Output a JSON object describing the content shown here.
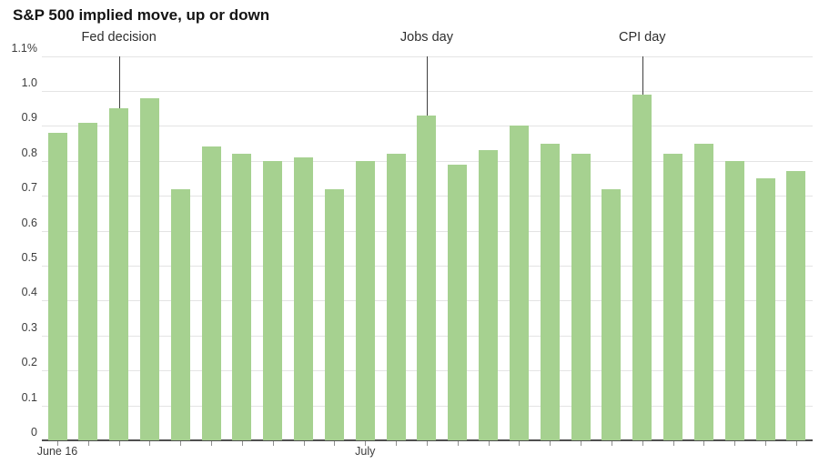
{
  "title": "S&P 500 implied move, up or down",
  "chart_data": {
    "type": "bar",
    "title": "S&P 500 implied move, up or down",
    "xlabel": "",
    "ylabel": "",
    "unit": "%",
    "ylim": [
      0,
      1.1
    ],
    "grid": true,
    "legend": "none",
    "bar_color": "#a6d190",
    "values": [
      0.88,
      0.91,
      0.95,
      0.98,
      0.72,
      0.84,
      0.82,
      0.8,
      0.81,
      0.72,
      0.8,
      0.82,
      0.93,
      0.79,
      0.83,
      0.9,
      0.85,
      0.82,
      0.72,
      0.99,
      0.82,
      0.85,
      0.8,
      0.75,
      0.77
    ],
    "yticks": [
      {
        "value": 1.1,
        "label": "1.1%"
      },
      {
        "value": 1.0,
        "label": "1.0"
      },
      {
        "value": 0.9,
        "label": "0.9"
      },
      {
        "value": 0.8,
        "label": "0.8"
      },
      {
        "value": 0.7,
        "label": "0.7"
      },
      {
        "value": 0.6,
        "label": "0.6"
      },
      {
        "value": 0.5,
        "label": "0.5"
      },
      {
        "value": 0.4,
        "label": "0.4"
      },
      {
        "value": 0.3,
        "label": "0.3"
      },
      {
        "value": 0.2,
        "label": "0.2"
      },
      {
        "value": 0.1,
        "label": "0.1"
      },
      {
        "value": 0,
        "label": "0"
      }
    ],
    "xticks": [
      {
        "index": 0,
        "label": "June 16"
      },
      {
        "index": 10,
        "label": "July"
      }
    ],
    "annotations": [
      {
        "index": 2,
        "label": "Fed decision"
      },
      {
        "index": 12,
        "label": "Jobs day"
      },
      {
        "index": 19,
        "label": "CPI day"
      }
    ]
  },
  "colors": {
    "bar": "#a6d190",
    "gridline": "#e4e4e4",
    "axis_line": "#4f4f4f",
    "tick": "#8f8f8f",
    "annotation_line": "#3f3f3f",
    "label_text": "#3d3d3d"
  }
}
